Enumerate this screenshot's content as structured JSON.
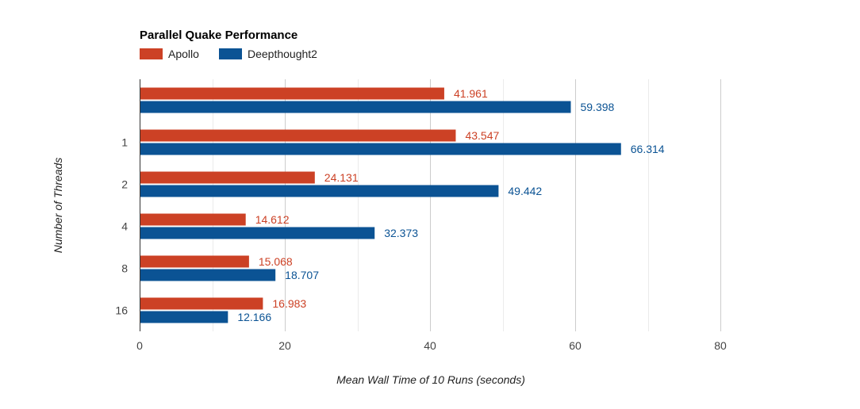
{
  "chart_data": {
    "type": "bar",
    "orientation": "horizontal",
    "title": "Parallel Quake Performance",
    "xlabel": "Mean Wall Time of 10 Runs (seconds)",
    "ylabel": "Number of Threads",
    "categories": [
      "",
      "1",
      "2",
      "4",
      "8",
      "16"
    ],
    "series": [
      {
        "name": "Apollo",
        "color": "#cc4125",
        "values": [
          41.961,
          43.547,
          24.131,
          14.612,
          15.068,
          16.983
        ]
      },
      {
        "name": "Deepthought2",
        "color": "#0b5394",
        "values": [
          59.398,
          66.314,
          49.442,
          32.373,
          18.707,
          12.166
        ]
      }
    ],
    "xlim": [
      0,
      80
    ],
    "x_ticks": [
      "0",
      "20",
      "40",
      "60",
      "80"
    ],
    "grid": true,
    "legend_position": "top-left"
  }
}
